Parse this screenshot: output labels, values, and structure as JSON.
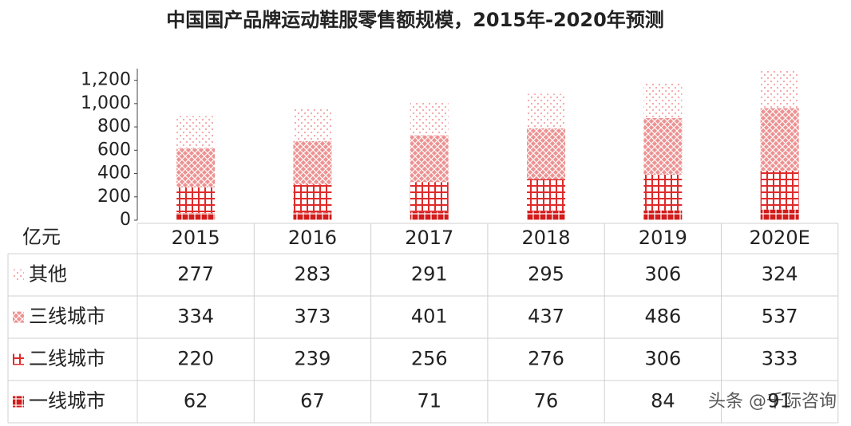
{
  "chart_data": {
    "type": "bar",
    "stacked": true,
    "title": "中国国产品牌运动鞋服零售额规模，2015年-2020年预测",
    "unit": "亿元",
    "categories": [
      "2015",
      "2016",
      "2017",
      "2018",
      "2019",
      "2020E"
    ],
    "series": [
      {
        "name": "其他",
        "color": "#f3a3a3",
        "values": [
          277,
          283,
          291,
          295,
          306,
          324
        ]
      },
      {
        "name": "三线城市",
        "color": "#e76d6d",
        "values": [
          334,
          373,
          401,
          437,
          486,
          537
        ]
      },
      {
        "name": "二线城市",
        "color": "#e02a2a",
        "values": [
          220,
          239,
          256,
          276,
          306,
          333
        ]
      },
      {
        "name": "一线城市",
        "color": "#d21c1c",
        "values": [
          62,
          67,
          71,
          76,
          84,
          91
        ]
      }
    ],
    "ylim": [
      0,
      1300
    ],
    "yticks": [
      0,
      200,
      400,
      600,
      800,
      {
        "value": 1000,
        "label": "1,000"
      },
      {
        "value": 1200,
        "label": "1,200"
      }
    ],
    "watermark": "头条 @千际咨询"
  }
}
